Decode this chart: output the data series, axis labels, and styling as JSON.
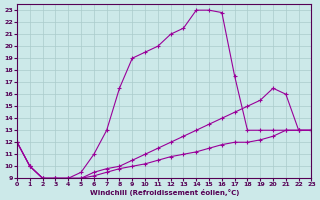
{
  "xlabel": "Windchill (Refroidissement éolien,°C)",
  "background_color": "#cce9e9",
  "line_color": "#990099",
  "grid_color": "#aacccc",
  "xlim": [
    0,
    23
  ],
  "ylim": [
    9,
    23.5
  ],
  "xticks": [
    0,
    1,
    2,
    3,
    4,
    5,
    6,
    7,
    8,
    9,
    10,
    11,
    12,
    13,
    14,
    15,
    16,
    17,
    18,
    19,
    20,
    21,
    22,
    23
  ],
  "yticks": [
    9,
    10,
    11,
    12,
    13,
    14,
    15,
    16,
    17,
    18,
    19,
    20,
    21,
    22,
    23
  ],
  "line1_x": [
    0,
    1,
    2,
    3,
    4,
    5,
    6,
    7,
    8,
    9,
    10,
    11,
    12,
    13,
    14,
    15,
    16,
    17,
    18,
    19,
    20,
    21,
    22,
    23
  ],
  "line1_y": [
    12,
    10,
    9,
    9,
    9,
    9,
    9.2,
    9.5,
    9.8,
    10,
    10.2,
    10.5,
    10.8,
    11,
    11.2,
    11.5,
    11.8,
    12,
    12,
    12.2,
    12.5,
    13,
    13,
    13
  ],
  "line2_x": [
    0,
    1,
    2,
    3,
    4,
    5,
    6,
    7,
    8,
    9,
    10,
    11,
    12,
    13,
    14,
    15,
    16,
    17,
    18,
    19,
    20,
    21,
    22,
    23
  ],
  "line2_y": [
    12,
    10,
    9,
    9,
    9,
    9,
    9.5,
    9.8,
    10,
    10.5,
    11,
    11.5,
    12,
    12.5,
    13,
    13.5,
    14,
    14.5,
    15,
    15.5,
    16.5,
    16,
    13,
    13
  ],
  "line3_x": [
    0,
    1,
    2,
    3,
    4,
    5,
    6,
    7,
    8,
    9,
    10,
    11,
    12,
    13,
    14,
    15,
    16,
    17,
    18,
    19,
    20,
    21,
    22,
    23
  ],
  "line3_y": [
    12,
    10,
    9,
    9,
    9,
    9.5,
    11,
    13,
    16.5,
    19,
    19.5,
    20,
    21,
    21.5,
    23,
    23,
    22.8,
    17.5,
    13,
    13,
    13,
    13,
    13,
    13
  ]
}
